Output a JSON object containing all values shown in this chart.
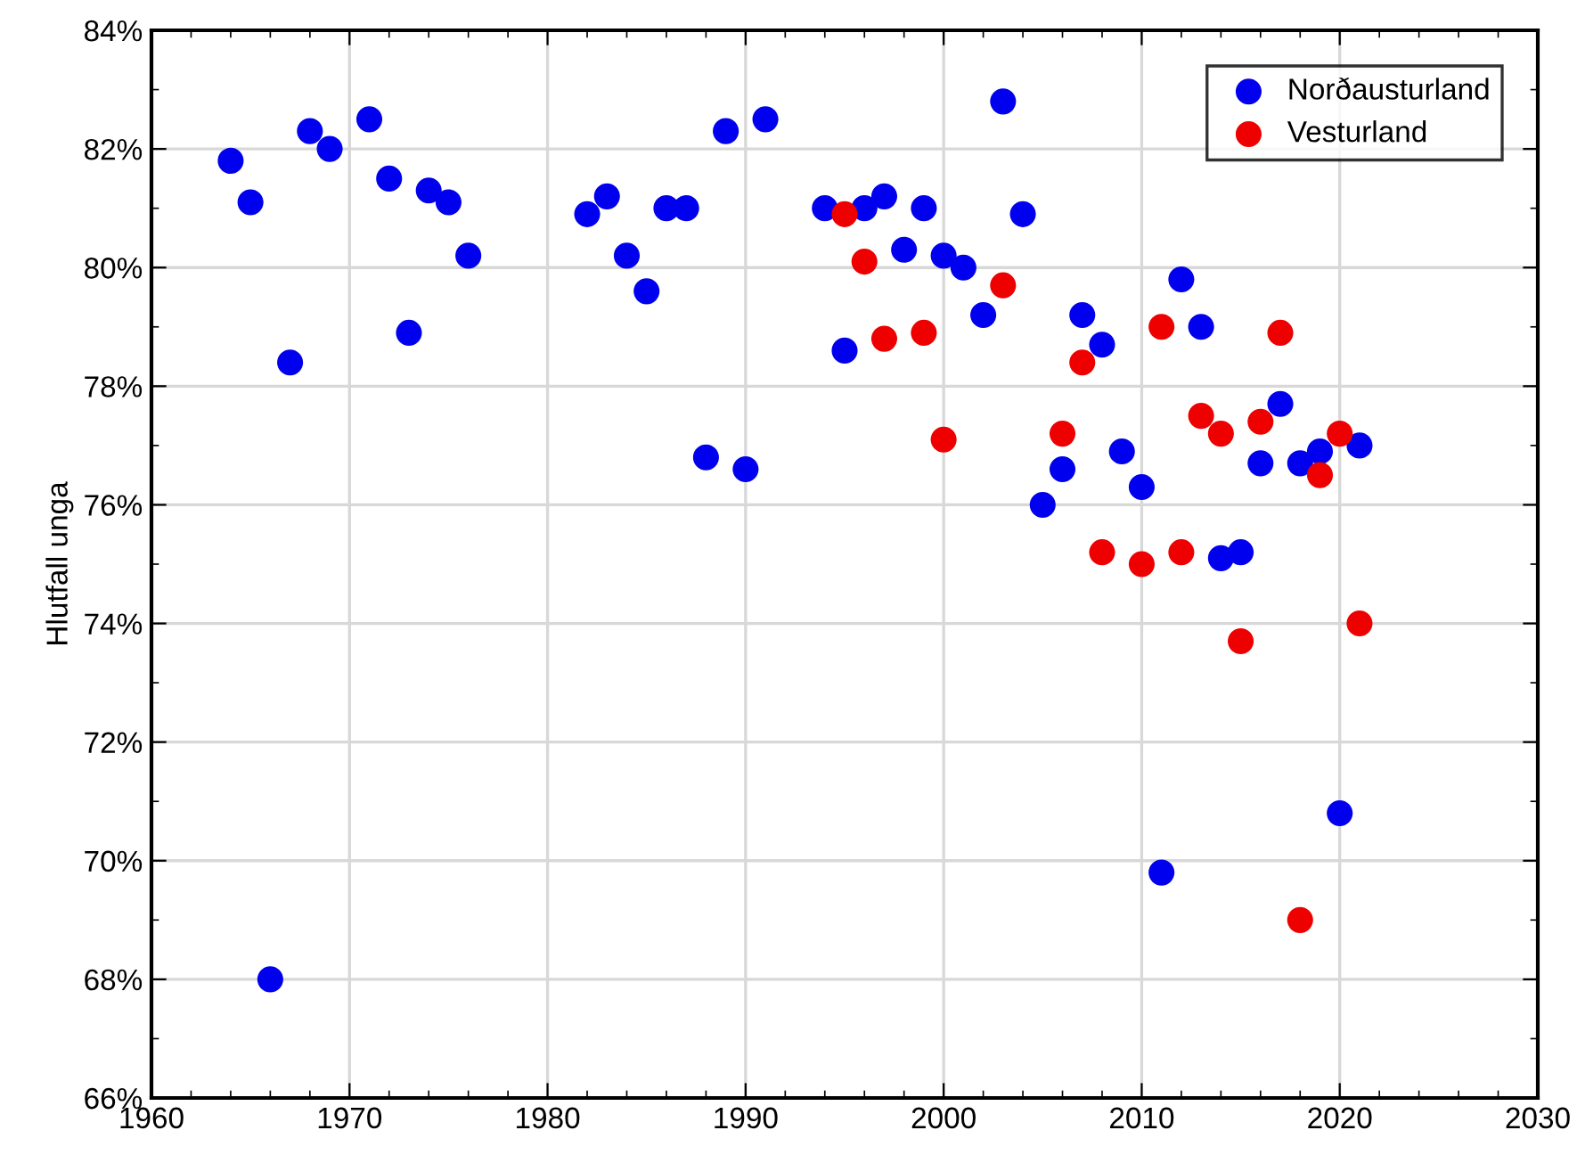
{
  "chart_data": {
    "type": "scatter",
    "ylabel": "Hlutfall unga",
    "marker": "circle",
    "grid": true,
    "legend": "top right",
    "xlim": [
      1960,
      2030
    ],
    "xticks": [
      1960,
      1970,
      1980,
      1990,
      2000,
      2010,
      2020,
      2030
    ],
    "ylim": [
      66,
      84
    ],
    "yticks": [
      {
        "value": 66,
        "label": "66%"
      },
      {
        "value": 68,
        "label": "68%"
      },
      {
        "value": 70,
        "label": "70%"
      },
      {
        "value": 72,
        "label": "72%"
      },
      {
        "value": 74,
        "label": "74%"
      },
      {
        "value": 76,
        "label": "76%"
      },
      {
        "value": 78,
        "label": "78%"
      },
      {
        "value": 80,
        "label": "80%"
      },
      {
        "value": 82,
        "label": "82%"
      },
      {
        "value": 84,
        "label": "84%"
      }
    ],
    "series": [
      {
        "name": "Norðausturland",
        "color": "#0000ee",
        "x": [
          1964,
          1965,
          1966,
          1967,
          1968,
          1969,
          1971,
          1972,
          1973,
          1974,
          1975,
          1976,
          1982,
          1983,
          1984,
          1985,
          1986,
          1987,
          1988,
          1989,
          1990,
          1991,
          1994,
          1995,
          1996,
          1997,
          1998,
          1999,
          2000,
          2001,
          2002,
          2003,
          2004,
          2005,
          2006,
          2007,
          2008,
          2009,
          2010,
          2011,
          2012,
          2013,
          2014,
          2015,
          2016,
          2017,
          2018,
          2019,
          2020,
          2021
        ],
        "values": [
          81.8,
          81.1,
          68.0,
          78.4,
          82.3,
          82.0,
          82.5,
          81.5,
          78.9,
          81.3,
          81.1,
          80.2,
          80.9,
          81.2,
          80.2,
          79.6,
          81.0,
          81.0,
          76.8,
          82.3,
          76.6,
          82.5,
          81.0,
          78.6,
          81.0,
          81.2,
          80.3,
          81.0,
          80.2,
          80.0,
          79.2,
          82.8,
          80.9,
          76.0,
          76.6,
          79.2,
          78.7,
          76.9,
          76.3,
          69.8,
          79.8,
          79.0,
          75.1,
          75.2,
          76.7,
          77.7,
          76.7,
          76.9,
          70.8,
          77.0
        ]
      },
      {
        "name": "Vesturland",
        "color": "#ee0000",
        "x": [
          1995,
          1996,
          1997,
          1999,
          2000,
          2003,
          2006,
          2007,
          2008,
          2010,
          2011,
          2012,
          2013,
          2014,
          2015,
          2016,
          2017,
          2018,
          2019,
          2020,
          2021
        ],
        "values": [
          80.9,
          80.1,
          78.8,
          78.9,
          77.1,
          79.7,
          77.2,
          78.4,
          75.2,
          75.0,
          79.0,
          75.2,
          77.5,
          77.2,
          73.7,
          77.4,
          78.9,
          69.0,
          76.5,
          77.2,
          74.0
        ]
      }
    ]
  }
}
